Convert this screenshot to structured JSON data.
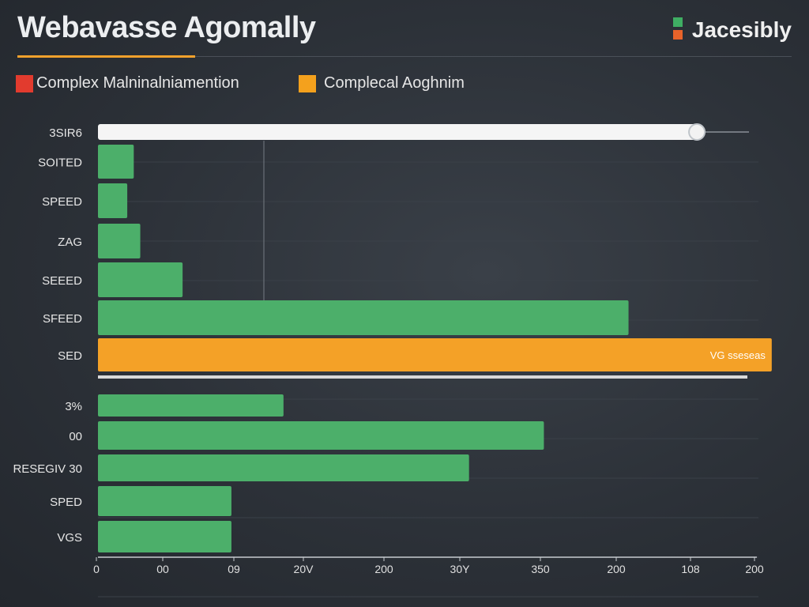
{
  "header": {
    "title": "Webavasse Agomally",
    "brand": "Jacesibly"
  },
  "legend": [
    {
      "label": "Complex Malninalniamention",
      "color": "#e23b2e"
    },
    {
      "label": "Complecal Aoghnim",
      "color": "#f4a11d"
    }
  ],
  "chart_data": {
    "type": "bar",
    "orientation": "horizontal",
    "xlim": [
      0,
      200
    ],
    "xticks": [
      "0",
      "00",
      "09",
      "20V",
      "200",
      "30Y",
      "350",
      "200",
      "108",
      "200"
    ],
    "highlight_label": "VG sseseas",
    "categories": [
      "3SIR6",
      "SOITED",
      "SPEED",
      "ZAG",
      "SEEED",
      "SFEED",
      "SED",
      "3%",
      "00",
      "RESEGIV 30",
      "SPED",
      "VGS"
    ],
    "values": [
      184,
      11,
      9,
      13,
      26,
      163,
      207,
      57,
      137,
      114,
      41,
      41
    ],
    "colors": [
      "#f5f5f5",
      "#4caf6a",
      "#4caf6a",
      "#4caf6a",
      "#4caf6a",
      "#4caf6a",
      "#f4a127",
      "#4caf6a",
      "#4caf6a",
      "#4caf6a",
      "#4caf6a",
      "#4caf6a"
    ]
  }
}
